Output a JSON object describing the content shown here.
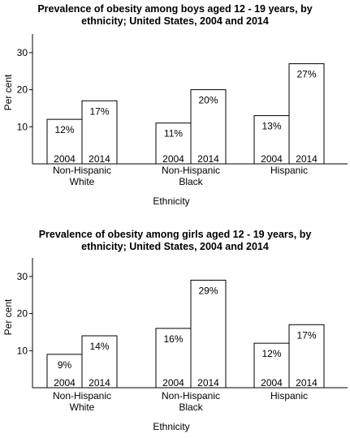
{
  "chart_data": [
    {
      "type": "bar",
      "title_line1": "Prevalence of obesity among boys aged 12 - 19 years, by",
      "title_line2": "ethnicity; United States, 2004 and 2014",
      "xlabel": "Ethnicity",
      "ylabel": "Per cent",
      "ylim": [
        0,
        35
      ],
      "yticks": [
        10,
        20,
        30
      ],
      "categories": [
        "Non-Hispanic White",
        "Non-Hispanic Black",
        "Hispanic"
      ],
      "category_lines": [
        [
          "Non-Hispanic",
          "White"
        ],
        [
          "Non-Hispanic",
          "Black"
        ],
        [
          "Hispanic"
        ]
      ],
      "series": [
        {
          "name": "2004",
          "values": [
            12,
            11,
            13
          ]
        },
        {
          "name": "2014",
          "values": [
            17,
            20,
            27
          ]
        }
      ],
      "value_suffix": "%",
      "grid": false,
      "legend": "none"
    },
    {
      "type": "bar",
      "title_line1": "Prevalence of obesity among girls aged 12 - 19 years, by",
      "title_line2": "ethnicity; United States, 2004 and 2014",
      "xlabel": "Ethnicity",
      "ylabel": "Per cent",
      "ylim": [
        0,
        35
      ],
      "yticks": [
        10,
        20,
        30
      ],
      "categories": [
        "Non-Hispanic White",
        "Non-Hispanic Black",
        "Hispanic"
      ],
      "category_lines": [
        [
          "Non-Hispanic",
          "White"
        ],
        [
          "Non-Hispanic",
          "Black"
        ],
        [
          "Hispanic"
        ]
      ],
      "series": [
        {
          "name": "2004",
          "values": [
            9,
            16,
            12
          ]
        },
        {
          "name": "2014",
          "values": [
            14,
            29,
            17
          ]
        }
      ],
      "value_suffix": "%",
      "grid": false,
      "legend": "none"
    }
  ]
}
